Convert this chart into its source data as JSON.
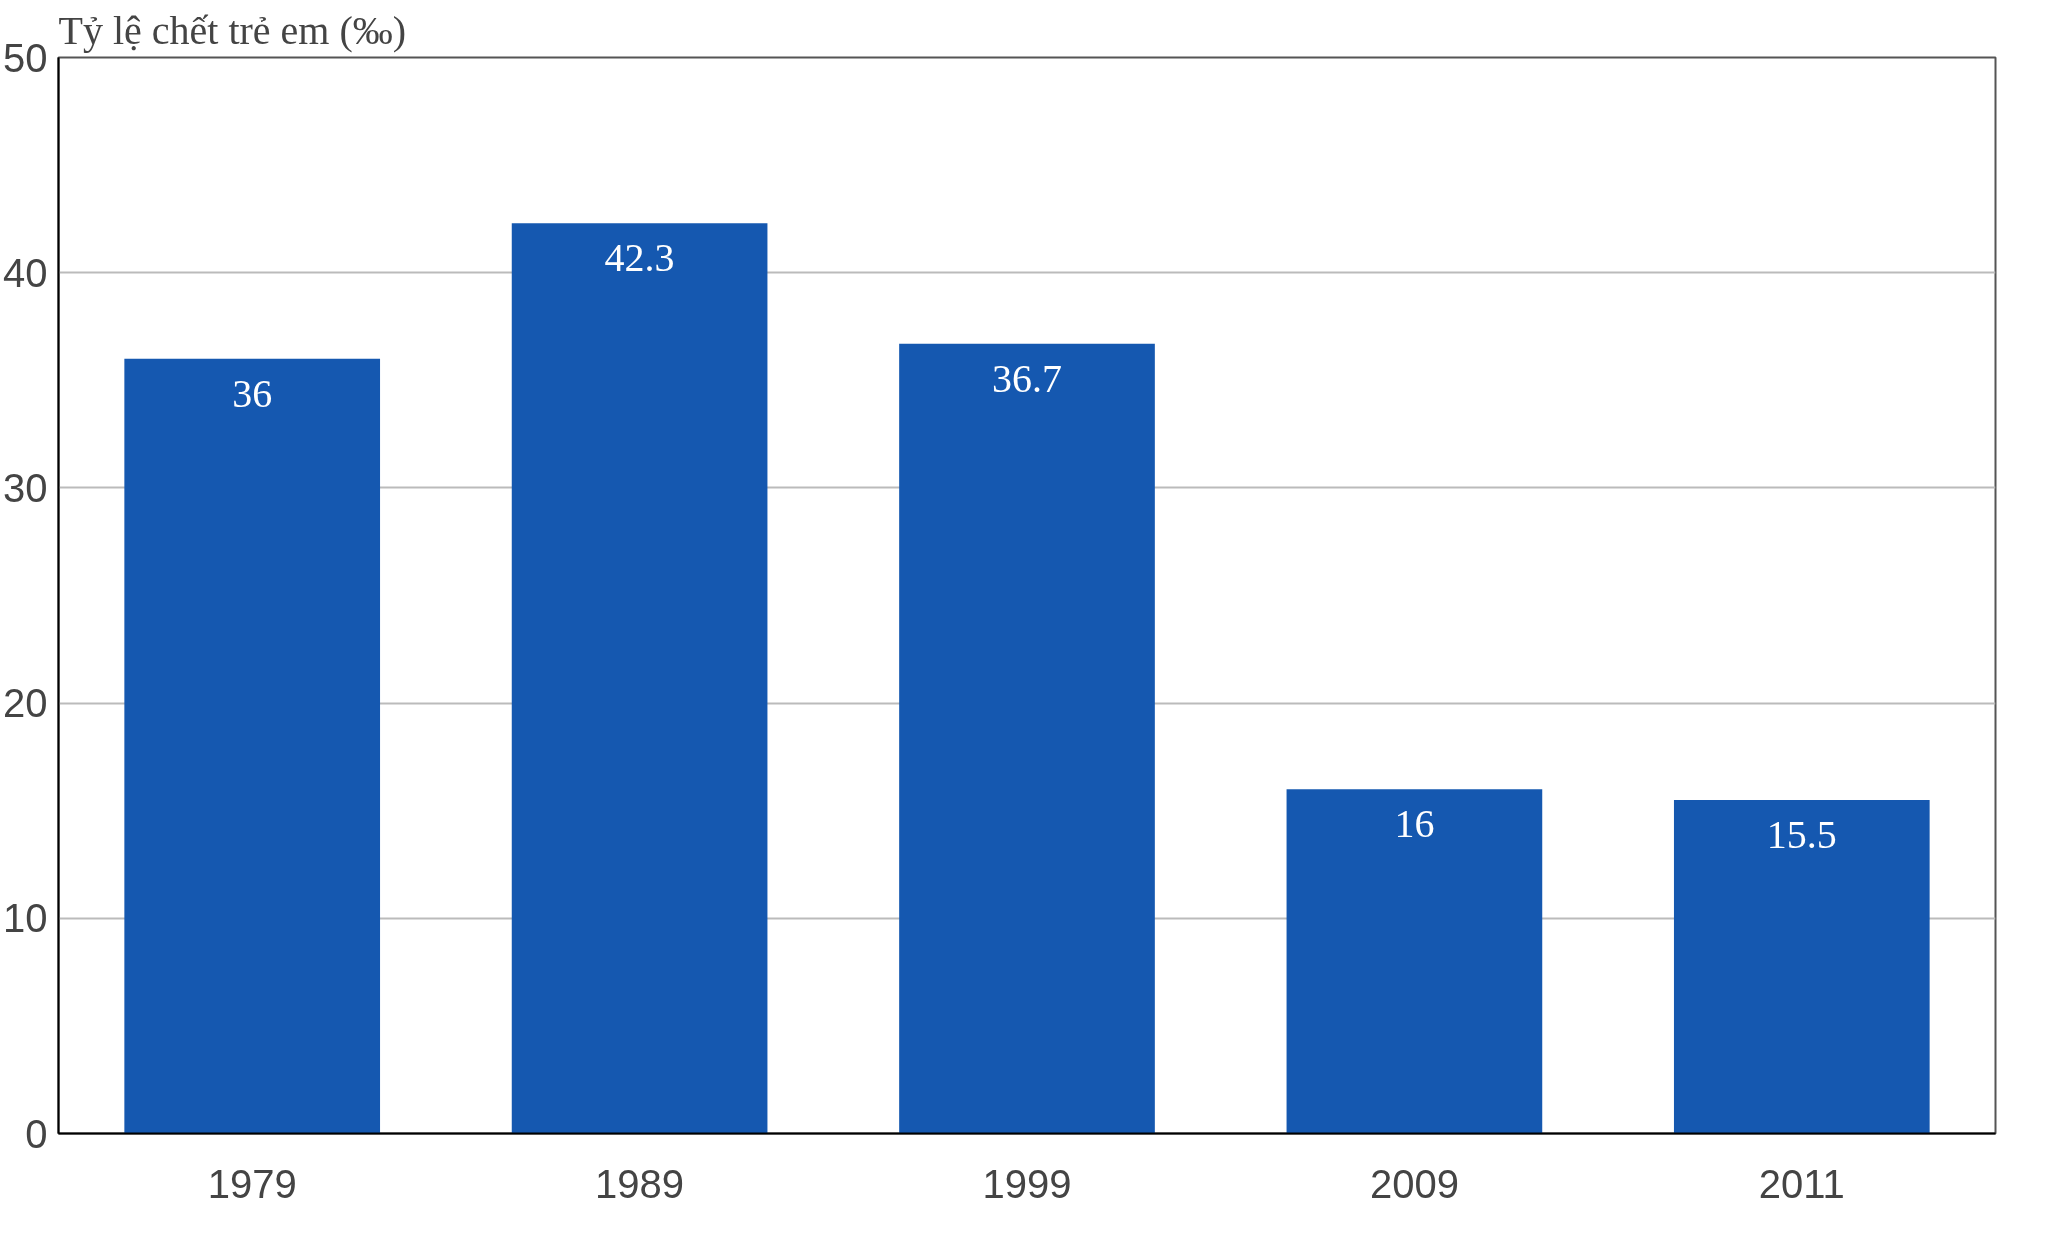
{
  "chart_data": {
    "type": "bar",
    "ylabel": "Tỷ lệ chết trẻ em (‰)",
    "categories": [
      "1979",
      "1989",
      "1999",
      "2009",
      "2011"
    ],
    "values": [
      36,
      42.3,
      36.7,
      16,
      15.5
    ],
    "color": "#1558b0",
    "ylim": [
      0,
      50
    ],
    "yticks": [
      0,
      10,
      20,
      30,
      40,
      50
    ],
    "grid": "y",
    "data_labels": true
  }
}
